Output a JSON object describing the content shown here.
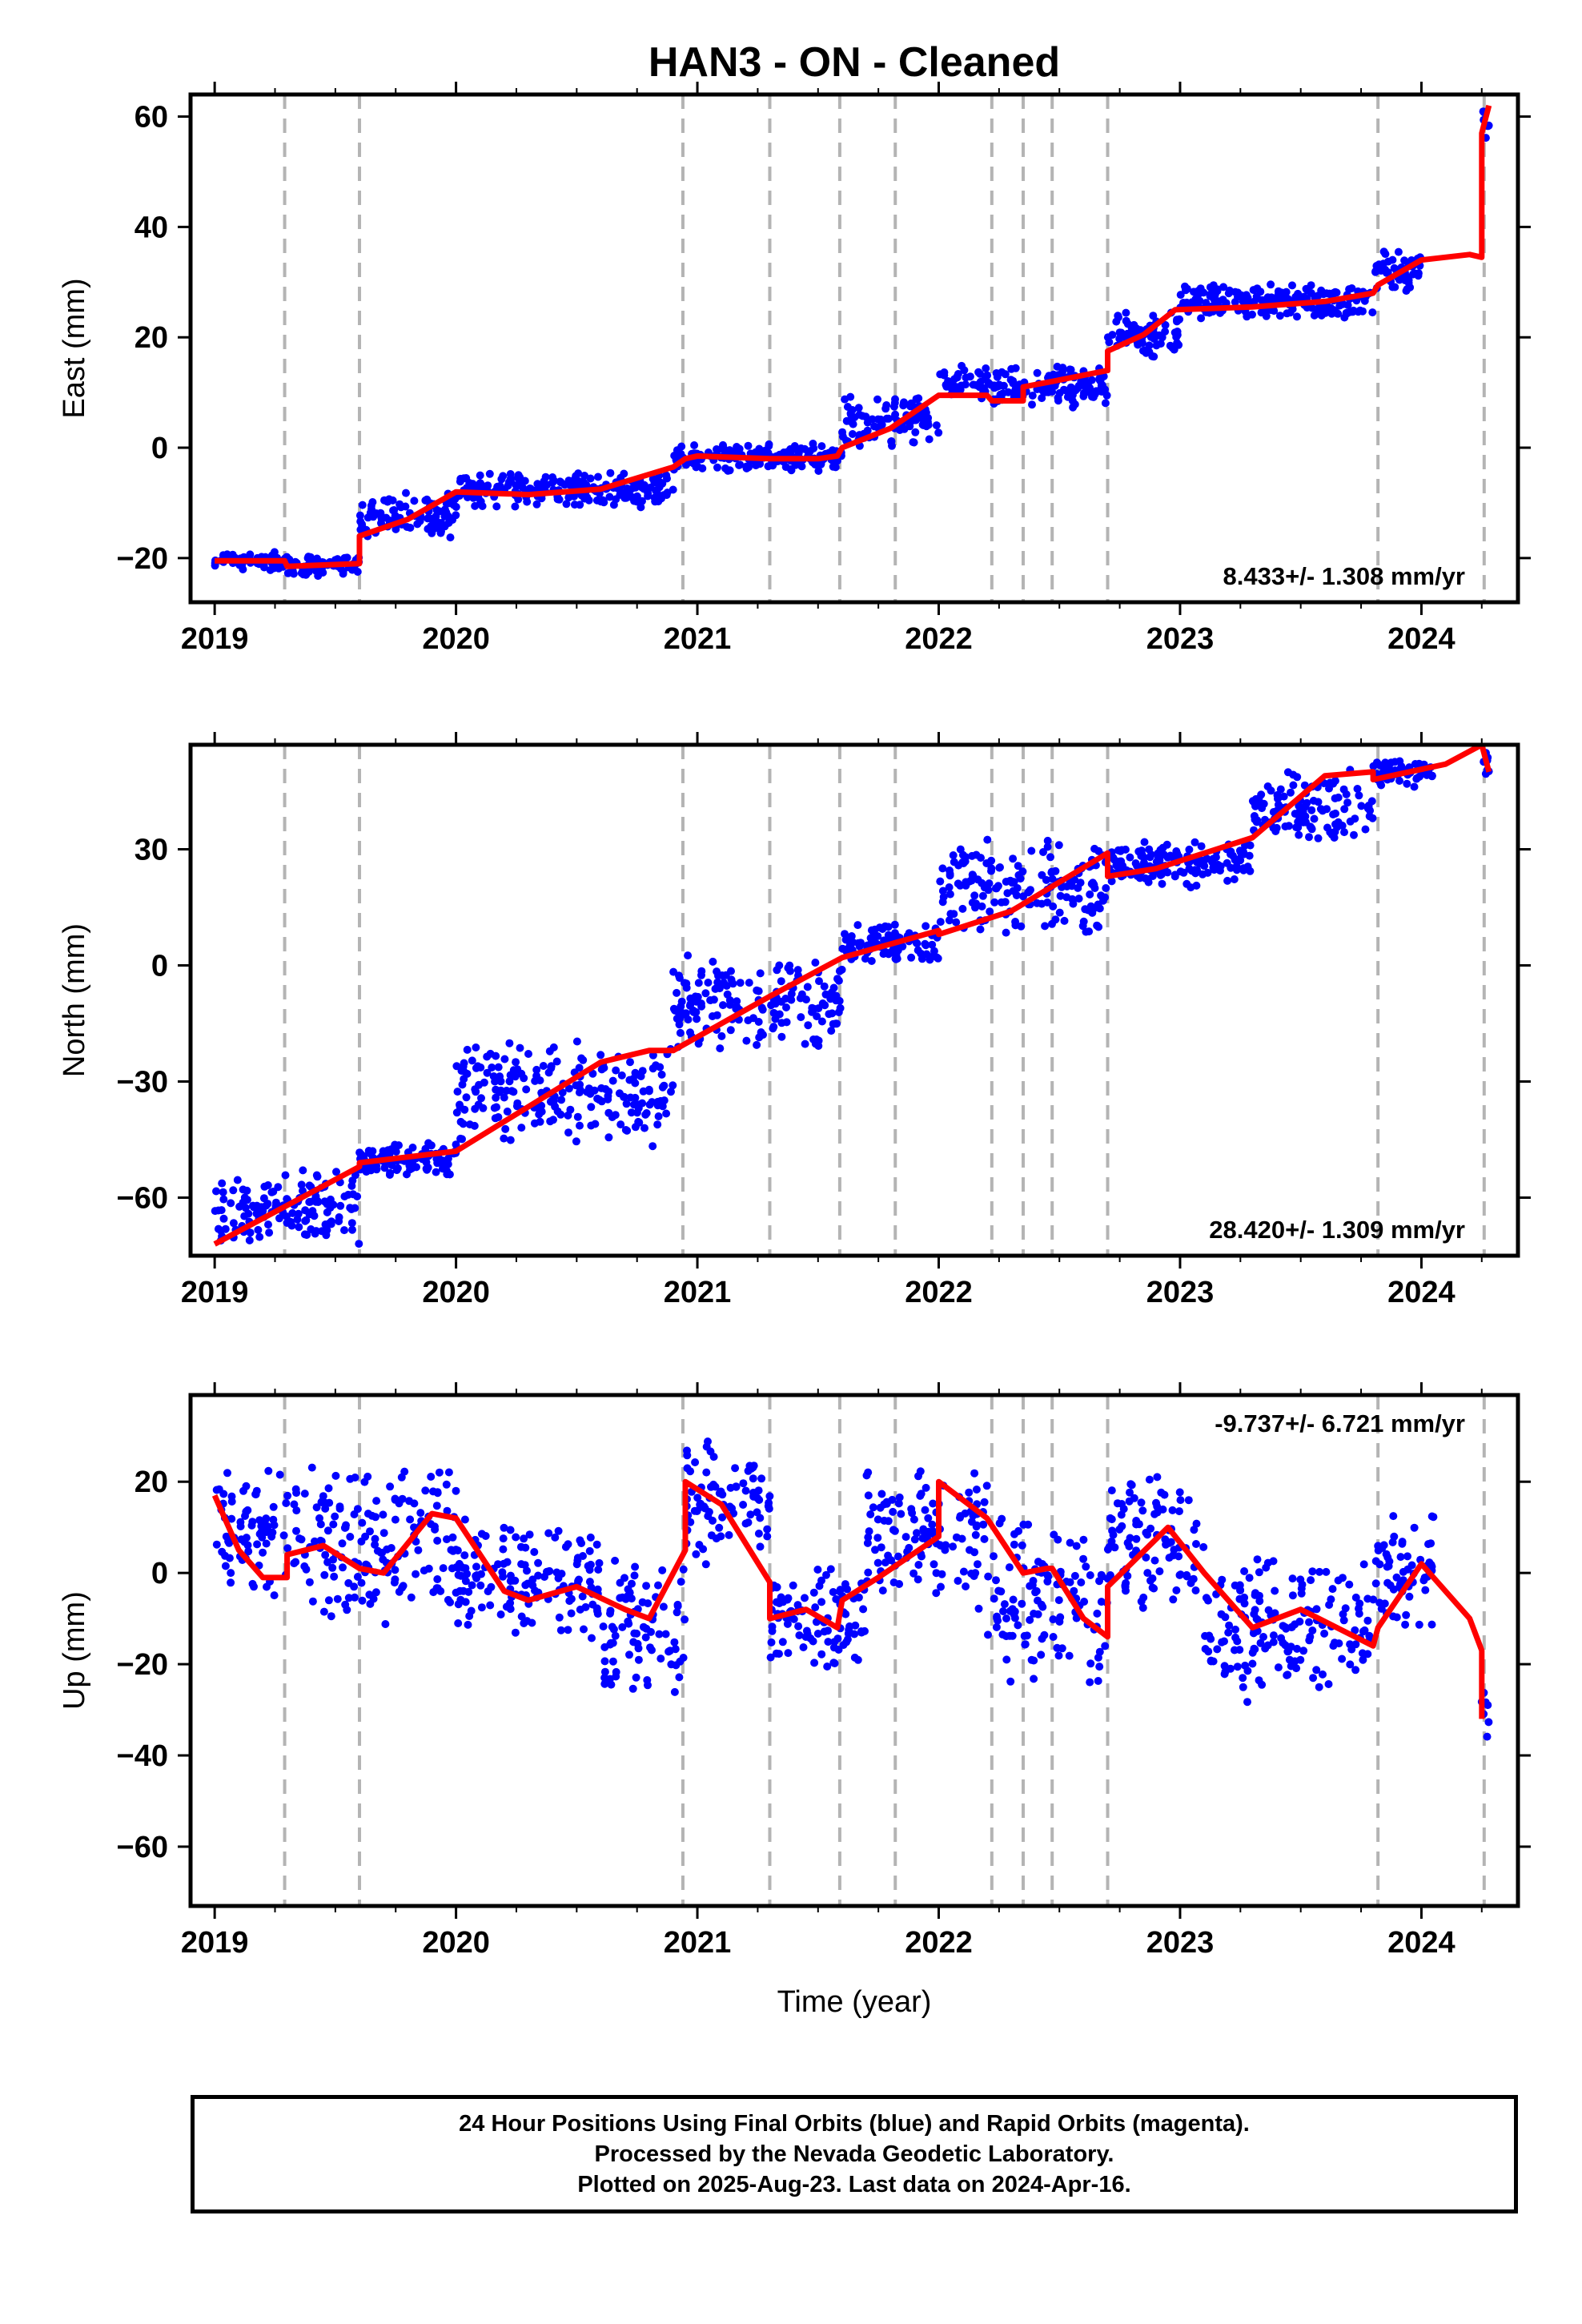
{
  "title": "HAN3  - ON - Cleaned",
  "colors": {
    "final_orbits": "#0000ff",
    "model": "#ff0000",
    "steps": "#b4b4b4",
    "frame": "#000000"
  },
  "chart_data": [
    {
      "type": "scatter",
      "ylabel": "East (mm)",
      "xlabel": "",
      "xlim": [
        2018.9,
        2024.4
      ],
      "ylim": [
        -28,
        64
      ],
      "xticks": [
        2019,
        2020,
        2021,
        2022,
        2023,
        2024
      ],
      "yticks": [
        -20,
        0,
        20,
        40,
        60
      ],
      "rate_label": "8.433+/- 1.308 mm/yr",
      "rate_label_position": "bottom-right",
      "model": {
        "x": [
          2019.0,
          2019.29,
          2019.3,
          2019.6,
          2019.6,
          2019.8,
          2020.0,
          2020.3,
          2020.6,
          2020.9,
          2020.95,
          2021.0,
          2021.3,
          2021.5,
          2021.58,
          2021.6,
          2021.8,
          2022.0,
          2022.2,
          2022.22,
          2022.35,
          2022.35,
          2022.47,
          2022.7,
          2022.7,
          2022.85,
          2022.98,
          2023.3,
          2023.6,
          2023.8,
          2023.82,
          2024.0,
          2024.2,
          2024.25,
          2024.25,
          2024.28
        ],
        "y": [
          -20.5,
          -20.5,
          -21.5,
          -21,
          -16,
          -13,
          -8,
          -8.5,
          -7.5,
          -3.5,
          -2,
          -1.5,
          -2,
          -2,
          -1.5,
          0,
          3.5,
          9.5,
          9.5,
          8.5,
          8.5,
          11,
          12,
          14,
          17.5,
          20.5,
          25,
          25.5,
          26.5,
          28,
          29.5,
          34,
          35,
          34.5,
          57,
          62
        ]
      },
      "points": [
        {
          "x_range": [
            2019.0,
            2019.3
          ],
          "y_range": [
            -22.5,
            -18.5
          ]
        },
        {
          "x_range": [
            2019.3,
            2019.6
          ],
          "y_range": [
            -23.5,
            -19
          ]
        },
        {
          "x_range": [
            2019.6,
            2020.0
          ],
          "y_range": [
            -17,
            -8
          ]
        },
        {
          "x_range": [
            2020.0,
            2020.9
          ],
          "y_range": [
            -11,
            -4
          ]
        },
        {
          "x_range": [
            2020.9,
            2021.6
          ],
          "y_range": [
            -4.5,
            1
          ]
        },
        {
          "x_range": [
            2021.6,
            2022.0
          ],
          "y_range": [
            0,
            10
          ]
        },
        {
          "x_range": [
            2022.0,
            2022.7
          ],
          "y_range": [
            7,
            15
          ]
        },
        {
          "x_range": [
            2022.7,
            2023.0
          ],
          "y_range": [
            16,
            25
          ]
        },
        {
          "x_range": [
            2023.0,
            2023.8
          ],
          "y_range": [
            23,
            30
          ]
        },
        {
          "x_range": [
            2023.8,
            2024.0
          ],
          "y_range": [
            28,
            36
          ]
        },
        {
          "x_range": [
            2024.25,
            2024.28
          ],
          "y_range": [
            55,
            62
          ]
        }
      ]
    },
    {
      "type": "scatter",
      "ylabel": "North (mm)",
      "xlabel": "",
      "xlim": [
        2018.9,
        2024.4
      ],
      "ylim": [
        -75,
        57
      ],
      "xticks": [
        2019,
        2020,
        2021,
        2022,
        2023,
        2024
      ],
      "yticks": [
        -60,
        -30,
        0,
        30
      ],
      "rate_label": "28.420+/- 1.309 mm/yr",
      "rate_label_position": "bottom-right",
      "model": {
        "x": [
          2019.0,
          2019.3,
          2019.6,
          2019.6,
          2020.0,
          2020.6,
          2020.8,
          2020.9,
          2021.3,
          2021.6,
          2022.0,
          2022.0,
          2022.3,
          2022.7,
          2022.7,
          2022.9,
          2023.3,
          2023.6,
          2023.8,
          2023.8,
          2024.1,
          2024.25,
          2024.28
        ],
        "y": [
          -72,
          -62,
          -52,
          -51,
          -48,
          -25,
          -22,
          -22,
          -8,
          2,
          9,
          8,
          14,
          29,
          23,
          25,
          33,
          49,
          50,
          48,
          52,
          57,
          50
        ]
      },
      "points": [
        {
          "x_range": [
            2019.0,
            2019.6
          ],
          "y_range": [
            -73,
            -52
          ]
        },
        {
          "x_range": [
            2019.6,
            2020.0
          ],
          "y_range": [
            -55,
            -45
          ]
        },
        {
          "x_range": [
            2020.0,
            2020.9
          ],
          "y_range": [
            -48,
            -18
          ]
        },
        {
          "x_range": [
            2020.9,
            2021.6
          ],
          "y_range": [
            -24,
            4
          ]
        },
        {
          "x_range": [
            2021.6,
            2022.0
          ],
          "y_range": [
            0,
            11
          ]
        },
        {
          "x_range": [
            2022.0,
            2022.7
          ],
          "y_range": [
            7,
            33
          ]
        },
        {
          "x_range": [
            2022.7,
            2023.3
          ],
          "y_range": [
            20,
            33
          ]
        },
        {
          "x_range": [
            2023.3,
            2023.8
          ],
          "y_range": [
            30,
            51
          ]
        },
        {
          "x_range": [
            2023.8,
            2024.05
          ],
          "y_range": [
            46,
            54
          ]
        },
        {
          "x_range": [
            2024.25,
            2024.28
          ],
          "y_range": [
            48,
            56
          ]
        }
      ]
    },
    {
      "type": "scatter",
      "ylabel": "Up (mm)",
      "xlabel": "Time (year)",
      "xlim": [
        2018.9,
        2024.4
      ],
      "ylim": [
        -73,
        39
      ],
      "xticks": [
        2019,
        2020,
        2021,
        2022,
        2023,
        2024
      ],
      "yticks": [
        -60,
        -40,
        -20,
        0,
        20
      ],
      "rate_label": "-9.737+/- 6.721 mm/yr",
      "rate_label_position": "top-right",
      "model": {
        "x": [
          2019.0,
          2019.1,
          2019.2,
          2019.3,
          2019.3,
          2019.45,
          2019.6,
          2019.7,
          2019.9,
          2020.0,
          2020.2,
          2020.3,
          2020.5,
          2020.7,
          2020.8,
          2020.95,
          2020.95,
          2021.1,
          2021.3,
          2021.3,
          2021.45,
          2021.58,
          2021.6,
          2021.75,
          2022.0,
          2022.0,
          2022.2,
          2022.35,
          2022.45,
          2022.47,
          2022.6,
          2022.7,
          2022.7,
          2022.95,
          2023.1,
          2023.3,
          2023.5,
          2023.8,
          2023.82,
          2024.0,
          2024.2,
          2024.25,
          2024.25
        ],
        "y": [
          17,
          5,
          -1,
          -1,
          4,
          6,
          1,
          0,
          13,
          12,
          -4,
          -6,
          -3,
          -8,
          -10,
          5,
          20,
          15,
          -2,
          -10,
          -8,
          -12,
          -6,
          -1,
          8,
          20,
          12,
          0,
          1,
          1,
          -10,
          -14,
          -3,
          10,
          0,
          -12,
          -8,
          -16,
          -12,
          2,
          -10,
          -17,
          -32
        ]
      },
      "points": [
        {
          "x_range": [
            2019.0,
            2019.3
          ],
          "y_range": [
            -10,
            25
          ]
        },
        {
          "x_range": [
            2019.3,
            2020.0
          ],
          "y_range": [
            -12,
            25
          ]
        },
        {
          "x_range": [
            2020.0,
            2020.6
          ],
          "y_range": [
            -15,
            12
          ]
        },
        {
          "x_range": [
            2020.6,
            2020.95
          ],
          "y_range": [
            -30,
            5
          ]
        },
        {
          "x_range": [
            2020.95,
            2021.3
          ],
          "y_range": [
            0,
            30
          ]
        },
        {
          "x_range": [
            2021.3,
            2021.7
          ],
          "y_range": [
            -22,
            3
          ]
        },
        {
          "x_range": [
            2021.7,
            2022.2
          ],
          "y_range": [
            -10,
            25
          ]
        },
        {
          "x_range": [
            2022.2,
            2022.7
          ],
          "y_range": [
            -28,
            15
          ]
        },
        {
          "x_range": [
            2022.7,
            2023.1
          ],
          "y_range": [
            -10,
            25
          ]
        },
        {
          "x_range": [
            2023.1,
            2023.8
          ],
          "y_range": [
            -30,
            5
          ]
        },
        {
          "x_range": [
            2023.8,
            2024.05
          ],
          "y_range": [
            -15,
            15
          ]
        },
        {
          "x_range": [
            2024.25,
            2024.28
          ],
          "y_range": [
            -38,
            -25
          ]
        }
      ]
    }
  ],
  "step_epochs": [
    2019.29,
    2019.6,
    2020.94,
    2021.3,
    2021.59,
    2021.82,
    2022.22,
    2022.35,
    2022.47,
    2022.7,
    2023.82,
    2024.26
  ],
  "footer": {
    "line1": "24 Hour Positions Using Final Orbits (blue) and Rapid Orbits (magenta).",
    "line2": "Processed by the Nevada Geodetic Laboratory.",
    "line3": "Plotted on 2025-Aug-23. Last data on 2024-Apr-16."
  }
}
